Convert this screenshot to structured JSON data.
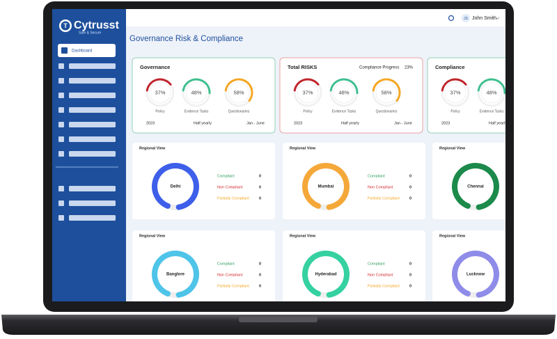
{
  "brand": {
    "name": "Cytrusst",
    "tagline": "Safe & Secure"
  },
  "nav": {
    "active": "Dashboard"
  },
  "user": {
    "initials": "JS",
    "name": "John Smith"
  },
  "page_title": "Governance Risk & Compliance",
  "cards": [
    {
      "title": "Governance",
      "gauges": [
        {
          "value": 37,
          "label": "37%",
          "name": "Policy"
        },
        {
          "value": 48,
          "label": "48%",
          "name": "Evidence Tasks"
        },
        {
          "value": 58,
          "label": "58%",
          "name": "Questionaries"
        }
      ],
      "footer": [
        "2023",
        "Half yearly",
        "Jan - June"
      ]
    },
    {
      "title": "Total RISKS",
      "progress_label": "Compliance Progress",
      "progress": "23%",
      "gauges": [
        {
          "value": 37,
          "label": "37%",
          "name": "Policy"
        },
        {
          "value": 48,
          "label": "48%",
          "name": "Evidence Tasks"
        },
        {
          "value": 58,
          "label": "58%",
          "name": "Questionaries"
        }
      ],
      "footer": [
        "2023",
        "Half yearly",
        "Jan - June"
      ]
    },
    {
      "title": "Compliance",
      "gauges": [
        {
          "value": 37,
          "label": "37%",
          "name": "Policy"
        },
        {
          "value": 48,
          "label": "48%",
          "name": "Evidence Tasks"
        }
      ],
      "footer": [
        "2023",
        "Half yearly"
      ]
    }
  ],
  "regions": [
    {
      "title": "Regional View",
      "city": "Delhi",
      "legend": [
        {
          "label": "Compliant",
          "value": 0
        },
        {
          "label": "Non Compliant",
          "value": 0
        },
        {
          "label": "Partially Compliant",
          "value": 0
        }
      ]
    },
    {
      "title": "Regional View",
      "city": "Mumbai",
      "legend": [
        {
          "label": "Compliant",
          "value": 0
        },
        {
          "label": "Non Compliant",
          "value": 0
        },
        {
          "label": "Partially Compliant",
          "value": 0
        }
      ]
    },
    {
      "title": "Regional View",
      "city": "Chennai",
      "legend": []
    },
    {
      "title": "Regional View",
      "city": "Banglore",
      "legend": [
        {
          "label": "Compliant",
          "value": 0
        },
        {
          "label": "Non Compliant",
          "value": 0
        },
        {
          "label": "Partially Compliant",
          "value": 0
        }
      ]
    },
    {
      "title": "Regional View",
      "city": "Hyderabad",
      "legend": [
        {
          "label": "Compliant",
          "value": 0
        },
        {
          "label": "Non Compliant",
          "value": 0
        },
        {
          "label": "Partially Compliant",
          "value": 0
        }
      ]
    },
    {
      "title": "Regional View",
      "city": "Lucknow",
      "legend": []
    }
  ]
}
